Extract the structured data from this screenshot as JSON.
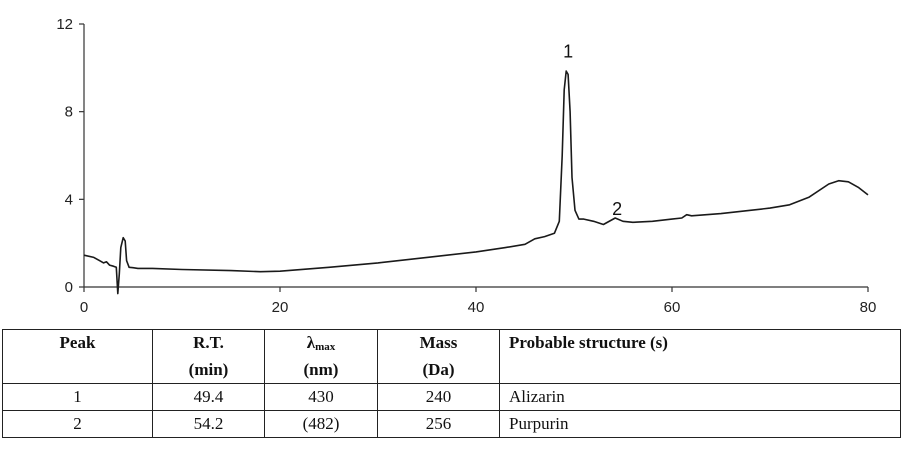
{
  "chart_data": {
    "type": "line",
    "title": "",
    "xlabel": "",
    "ylabel": "",
    "xlim": [
      0,
      80
    ],
    "ylim": [
      0,
      12
    ],
    "x_ticks": [
      "0",
      "20",
      "40",
      "60",
      "80"
    ],
    "y_ticks": [
      "0",
      "4",
      "8",
      "12"
    ],
    "grid": false,
    "peak_labels": [
      {
        "label": "1",
        "x": 49.4,
        "y": 10.6
      },
      {
        "label": "2",
        "x": 54.2,
        "y": 3.6
      }
    ],
    "series": [
      {
        "color": "#1a1a1a",
        "x": [
          0,
          1,
          1.6,
          2,
          2.3,
          2.6,
          3,
          3.3,
          3.45,
          3.6,
          3.75,
          4.0,
          4.2,
          4.35,
          4.6,
          5.0,
          5.5,
          7,
          10,
          15,
          18,
          20,
          25,
          30,
          35,
          40,
          43,
          45,
          46,
          47,
          48,
          48.5,
          48.8,
          49.0,
          49.2,
          49.4,
          49.6,
          49.8,
          50.1,
          50.5,
          51.0,
          52,
          53,
          54.2,
          55,
          56,
          58,
          60,
          61,
          61.5,
          62,
          65,
          68,
          70,
          72,
          74,
          76,
          77,
          78,
          79,
          80
        ],
        "y": [
          1.45,
          1.35,
          1.2,
          1.1,
          1.15,
          1.0,
          0.95,
          0.9,
          -0.3,
          0.6,
          1.8,
          2.25,
          2.1,
          1.2,
          0.9,
          0.88,
          0.85,
          0.85,
          0.8,
          0.75,
          0.7,
          0.72,
          0.9,
          1.1,
          1.35,
          1.6,
          1.8,
          1.95,
          2.2,
          2.3,
          2.45,
          3.0,
          6.0,
          9.0,
          9.85,
          9.7,
          8.0,
          5.0,
          3.5,
          3.1,
          3.1,
          3.0,
          2.85,
          3.15,
          3.0,
          2.95,
          3.0,
          3.1,
          3.15,
          3.3,
          3.25,
          3.35,
          3.5,
          3.6,
          3.75,
          4.1,
          4.7,
          4.85,
          4.8,
          4.55,
          4.2
        ]
      }
    ]
  },
  "table": {
    "headers": {
      "peak": "Peak",
      "rt": "R.T.",
      "lambda_symbol": "λ",
      "lambda_sub": "max",
      "mass": "Mass",
      "structure": "Probable structure (s)"
    },
    "units": {
      "peak": "",
      "rt": "(min)",
      "lambda": "(nm)",
      "mass": "(Da)",
      "structure": ""
    },
    "rows": [
      {
        "peak": "1",
        "rt": "49.4",
        "lambda": "430",
        "mass": "240",
        "structure": "Alizarin"
      },
      {
        "peak": "2",
        "rt": "54.2",
        "lambda": "(482)",
        "mass": "256",
        "structure": "Purpurin"
      }
    ]
  }
}
